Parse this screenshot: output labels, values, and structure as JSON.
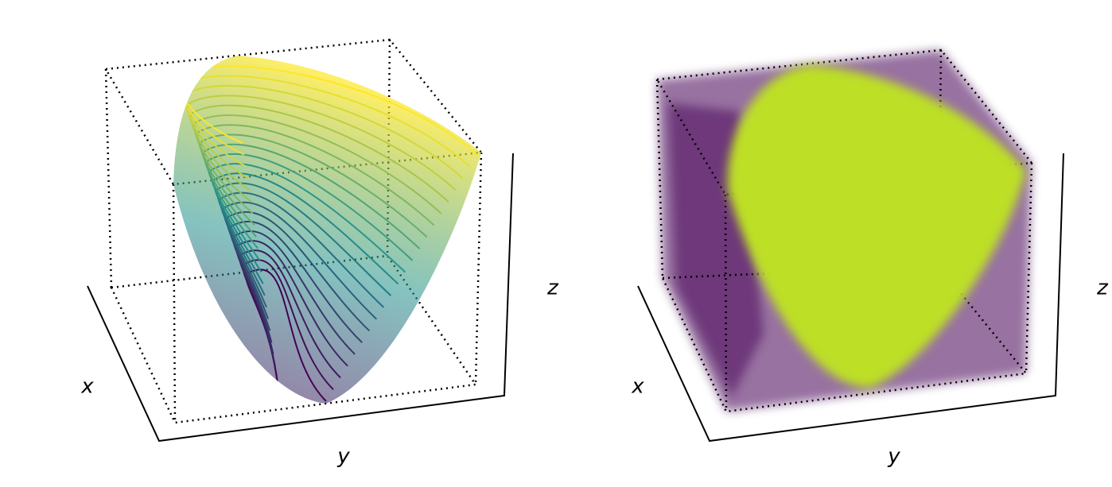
{
  "chart_data": [
    {
      "type": "surface",
      "xlabel": "x",
      "ylabel": "y",
      "zlabel": "z",
      "colormap": [
        "#440154",
        "#21918c",
        "#fde725"
      ]
    },
    {
      "type": "scatter",
      "xlabel": "x",
      "ylabel": "y",
      "zlabel": "z",
      "colors": [
        "#440154",
        "#bddf26"
      ]
    }
  ]
}
